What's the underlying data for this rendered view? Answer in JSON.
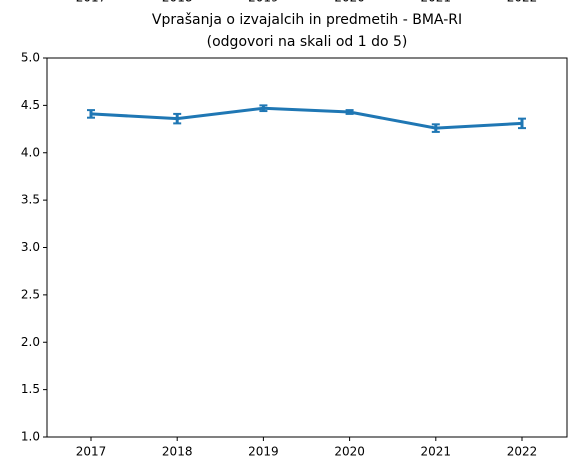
{
  "chart_data": {
    "type": "line",
    "title": "Vprašanja o izvajalcih in predmetih - BMA-RI",
    "subtitle": "(odgovori na skali od 1 do 5)",
    "categories": [
      "2017",
      "2018",
      "2019",
      "2020",
      "2021",
      "2022"
    ],
    "values": [
      4.41,
      4.36,
      4.47,
      4.43,
      4.26,
      4.31
    ],
    "errors": [
      0.04,
      0.05,
      0.03,
      0.02,
      0.04,
      0.05
    ],
    "color": "#1f77b4",
    "ylim": [
      1.0,
      5.0
    ],
    "yticks": [
      {
        "value": 1.0,
        "label": "1.0"
      },
      {
        "value": 1.5,
        "label": "1.5"
      },
      {
        "value": 2.0,
        "label": "2.0"
      },
      {
        "value": 2.5,
        "label": "2.5"
      },
      {
        "value": 3.0,
        "label": "3.0"
      },
      {
        "value": 3.5,
        "label": "3.5"
      },
      {
        "value": 4.0,
        "label": "4.0"
      },
      {
        "value": 4.5,
        "label": "4.5"
      },
      {
        "value": 5.0,
        "label": "5.0"
      }
    ],
    "grid": false
  }
}
